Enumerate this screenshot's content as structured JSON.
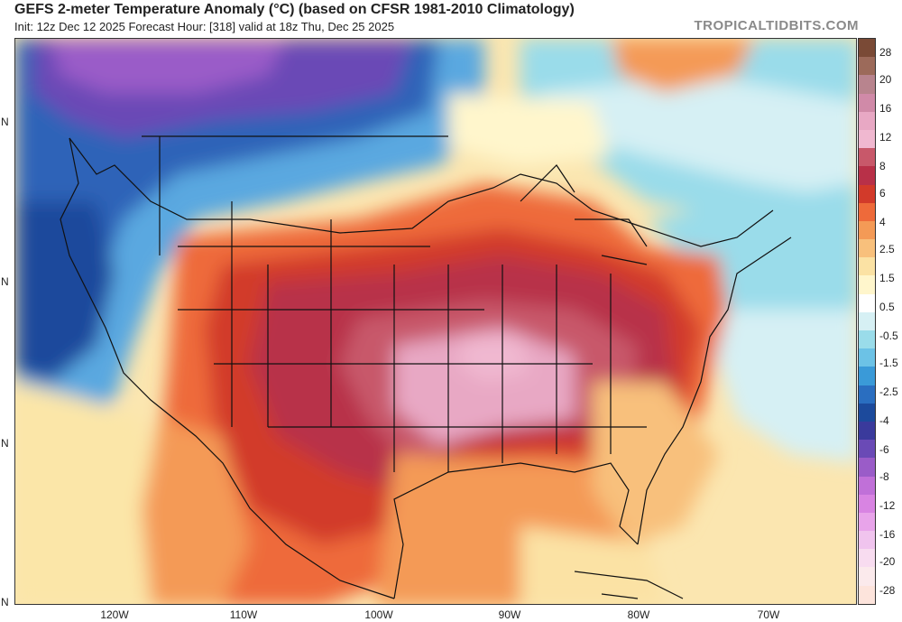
{
  "header": {
    "title": "GEFS 2-meter Temperature Anomaly (°C) (based on CFSR 1981-2010 Climatology)",
    "subtitle": "Init: 12z Dec 12 2025   Forecast Hour: [318]   valid at 18z Thu, Dec 25 2025",
    "brand": "TROPICALTIDBITS.COM"
  },
  "map": {
    "lat_labels": [
      "N",
      "N",
      "N",
      "N"
    ],
    "lon_labels": [
      "120W",
      "110W",
      "100W",
      "90W",
      "80W",
      "70W"
    ]
  },
  "legend": {
    "labels": [
      "28",
      "20",
      "16",
      "12",
      "8",
      "6",
      "4",
      "2.5",
      "1.5",
      "0.5",
      "-0.5",
      "-1.5",
      "-2.5",
      "-4",
      "-6",
      "-8",
      "-12",
      "-16",
      "-20",
      "-28"
    ],
    "colors": [
      "#7a4a36",
      "#9c6a5a",
      "#b8848e",
      "#d08aa8",
      "#e8a8c4",
      "#f0b8d0",
      "#c8586a",
      "#b83048",
      "#d23a2a",
      "#ee6a3a",
      "#f49a56",
      "#f8c07c",
      "#fbe2a4",
      "#fff6cc",
      "#ffffff",
      "#d6f0f4",
      "#9adcea",
      "#6cc2e6",
      "#3a9ad8",
      "#2a6ec0",
      "#1c4a9c",
      "#3a3a9c",
      "#6a4ab6",
      "#9a5cc8",
      "#c070d8",
      "#d884e2",
      "#e8a4ea",
      "#f0c4ee",
      "#f8dcf0",
      "#fbeaec",
      "#fde4dc"
    ]
  }
}
